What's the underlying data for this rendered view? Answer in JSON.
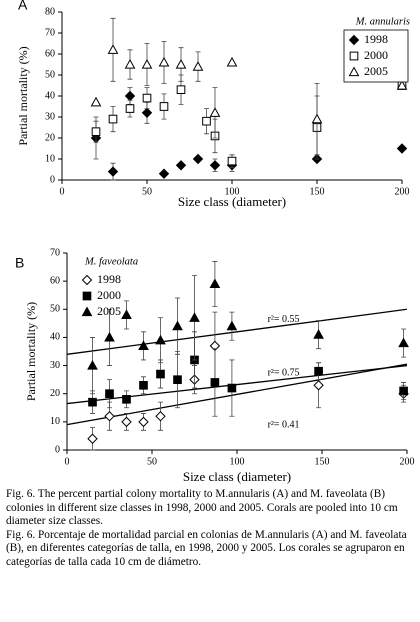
{
  "chart_data": [
    {
      "type": "scatter",
      "panel": "A",
      "ylabel": "Partial mortality (%)",
      "xlabel": "Size class (diameter)",
      "legend_title": "M. annularis",
      "legend": "upper right",
      "legend_box": true,
      "xlim": [
        0,
        200
      ],
      "xticks": [
        0,
        50,
        100,
        150,
        200
      ],
      "ylim": [
        0,
        80
      ],
      "yticks": [
        0,
        10,
        20,
        30,
        40,
        50,
        60,
        70,
        80
      ],
      "series": [
        {
          "name": "1998",
          "color": "#000000",
          "marker": "diamond",
          "filled": true,
          "x": [
            20,
            30,
            40,
            50,
            60,
            70,
            80,
            90,
            100,
            150,
            200
          ],
          "values": [
            20,
            4,
            40,
            32,
            3,
            7,
            10,
            7,
            7,
            10,
            15
          ],
          "errors": [
            10,
            4,
            4,
            5,
            null,
            null,
            null,
            3,
            3,
            null,
            null
          ]
        },
        {
          "name": "2000",
          "color": "#000000",
          "marker": "square",
          "filled": false,
          "x": [
            20,
            30,
            40,
            50,
            60,
            70,
            85,
            90,
            100,
            150,
            200
          ],
          "values": [
            23,
            29,
            34,
            39,
            35,
            43,
            28,
            21,
            9,
            25,
            45
          ],
          "errors": [
            5,
            6,
            4,
            5,
            6,
            7,
            6,
            8,
            3,
            15,
            null
          ]
        },
        {
          "name": "2005",
          "color": "#000000",
          "marker": "triangle",
          "filled": false,
          "x": [
            20,
            30,
            40,
            50,
            60,
            70,
            80,
            90,
            100,
            150,
            200
          ],
          "values": [
            37,
            62,
            55,
            55,
            56,
            55,
            54,
            32,
            56,
            29,
            45
          ],
          "errors": [
            null,
            15,
            7,
            10,
            10,
            8,
            7,
            12,
            null,
            17,
            null
          ]
        }
      ]
    },
    {
      "type": "scatter",
      "panel": "B",
      "ylabel": "Partial mortality (%)",
      "xlabel": "Size class (diameter)",
      "legend_title": "M. faveolata",
      "legend": "upper left",
      "legend_box": false,
      "xlim": [
        0,
        200
      ],
      "xticks": [
        0,
        50,
        100,
        150,
        200
      ],
      "ylim": [
        0,
        70
      ],
      "yticks": [
        0,
        10,
        20,
        30,
        40,
        50,
        60,
        70
      ],
      "series": [
        {
          "name": "1998",
          "color": "#000000",
          "marker": "diamond",
          "filled": false,
          "x": [
            15,
            25,
            35,
            45,
            55,
            75,
            87,
            148,
            198
          ],
          "values": [
            4,
            12,
            10,
            10,
            12,
            25,
            37,
            23,
            20
          ],
          "errors": [
            4,
            5,
            3,
            3,
            5,
            5,
            12,
            8,
            3
          ]
        },
        {
          "name": "2000",
          "color": "#000000",
          "marker": "square",
          "filled": true,
          "x": [
            15,
            25,
            35,
            45,
            55,
            65,
            75,
            87,
            97,
            148,
            198
          ],
          "values": [
            17,
            20,
            18,
            23,
            27,
            25,
            32,
            24,
            22,
            28,
            21
          ],
          "errors": [
            4,
            5,
            3,
            3,
            5,
            10,
            10,
            12,
            10,
            3,
            3
          ]
        },
        {
          "name": "2005",
          "color": "#000000",
          "marker": "triangle",
          "filled": true,
          "x": [
            15,
            25,
            35,
            45,
            55,
            65,
            75,
            87,
            97,
            148,
            198
          ],
          "values": [
            30,
            40,
            48,
            37,
            39,
            44,
            47,
            59,
            44,
            41,
            38
          ],
          "errors": [
            10,
            10,
            5,
            5,
            8,
            10,
            15,
            8,
            5,
            5,
            5
          ]
        }
      ],
      "trendlines": [
        {
          "x": [
            0,
            200
          ],
          "y": [
            34,
            50
          ],
          "label": "r²= 0.55"
        },
        {
          "x": [
            0,
            200
          ],
          "y": [
            16.5,
            30
          ],
          "label": "r²= 0.75"
        },
        {
          "x": [
            0,
            200
          ],
          "y": [
            9,
            30.5
          ],
          "label": "r²= 0.41"
        }
      ]
    }
  ],
  "caption": [
    "Fig. 6. The percent partial colony mortality to M.annularis (A) and M. faveolata (B) colonies in different size classes in 1998, 2000 and 2005. Corals are pooled into 10 cm diameter size classes.",
    "Fig. 6. Porcentaje de mortalidad parcial en colonias de M.annularis (A) and M. faveolata (B), en diferentes categorías de talla, en 1998, 2000 y 2005. Los corales se agruparon en categorías de talla cada 10 cm de diámetro."
  ]
}
